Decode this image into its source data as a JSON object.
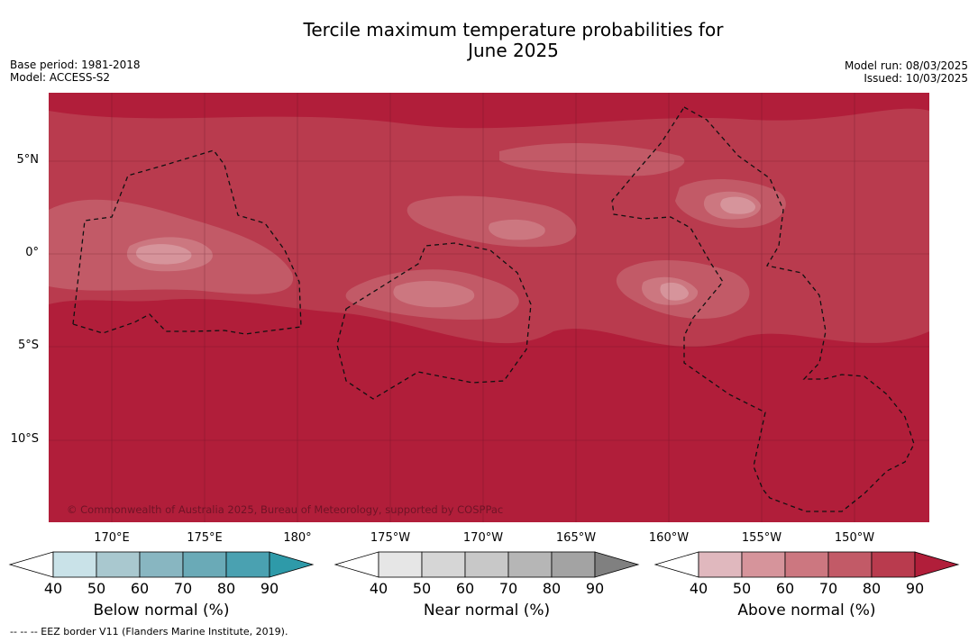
{
  "title_line1": "Tercile maximum temperature probabilities for",
  "title_line2": "June 2025",
  "meta_left": [
    "Base period: 1981-2018",
    "Model: ACCESS-S2"
  ],
  "meta_right": [
    "Model run: 08/03/2025",
    "Issued: 10/03/2025"
  ],
  "credit": "© Commonwealth of Australia 2025, Bureau of Meteorology, supported by COSPPac",
  "lat_labels": [
    "5°N",
    "0°",
    "5°S",
    "10°S"
  ],
  "lon_labels": [
    "170°E",
    "175°E",
    "180°",
    "175°W",
    "170°W",
    "165°W",
    "160°W",
    "155°W",
    "150°W"
  ],
  "colorbars": [
    {
      "name": "below",
      "title": "Below normal (%)",
      "ticks": [
        "40",
        "50",
        "60",
        "70",
        "80",
        "90"
      ],
      "colors": [
        "#c9e2e8",
        "#a9c8cf",
        "#88b6c1",
        "#6aaab7",
        "#4aa1b1",
        "#2e9aa9"
      ]
    },
    {
      "name": "near",
      "title": "Near normal (%)",
      "ticks": [
        "40",
        "50",
        "60",
        "70",
        "80",
        "90"
      ],
      "colors": [
        "#e6e6e6",
        "#d6d6d6",
        "#c8c8c8",
        "#b6b6b6",
        "#a3a3a3",
        "#808080"
      ]
    },
    {
      "name": "above",
      "title": "Above normal (%)",
      "ticks": [
        "40",
        "50",
        "60",
        "70",
        "80",
        "90"
      ],
      "colors": [
        "#e0b8be",
        "#d6949b",
        "#cc7780",
        "#c25a67",
        "#b93b4e",
        "#b11e3a"
      ]
    }
  ],
  "footnote": "-- -- -- EEZ border V11 (Flanders Marine Institute, 2019)."
}
